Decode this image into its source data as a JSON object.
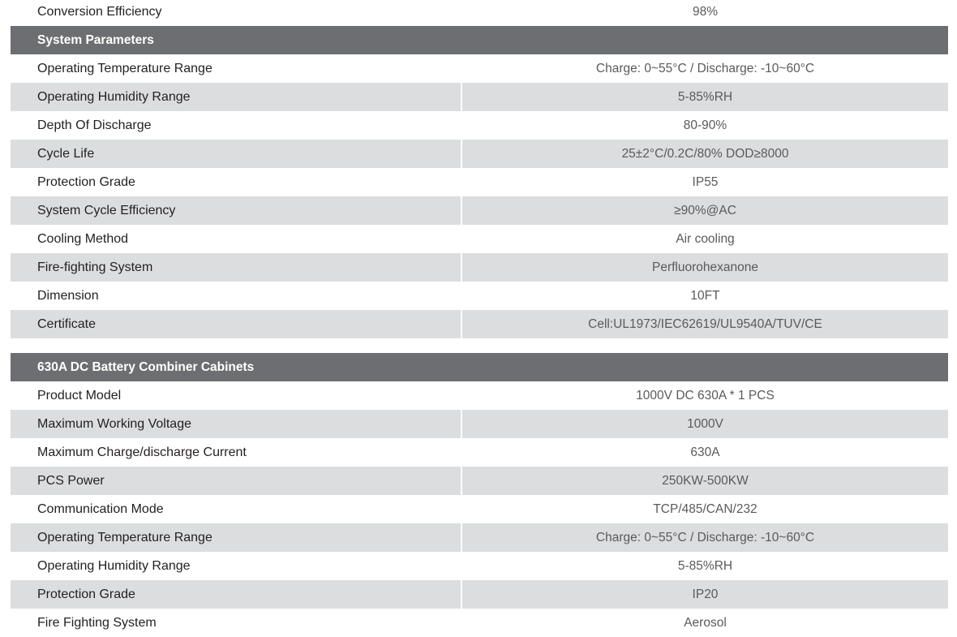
{
  "top_row": {
    "label": "Conversion Efficiency",
    "value": "98%"
  },
  "sections": [
    {
      "title": "System Parameters",
      "rows": [
        {
          "label": "Operating Temperature Range",
          "value": "Charge: 0~55°C / Discharge: -10~60°C"
        },
        {
          "label": "Operating Humidity Range",
          "value": "5-85%RH"
        },
        {
          "label": "Depth Of Discharge",
          "value": "80-90%"
        },
        {
          "label": "Cycle Life",
          "value": "25±2°C/0.2C/80% DOD≥8000"
        },
        {
          "label": "Protection Grade",
          "value": "IP55"
        },
        {
          "label": "System Cycle Efficiency",
          "value": "≥90%@AC"
        },
        {
          "label": "Cooling Method",
          "value": "Air cooling"
        },
        {
          "label": "Fire-fighting System",
          "value": "Perfluorohexanone"
        },
        {
          "label": "Dimension",
          "value": "10FT"
        },
        {
          "label": "Certificate",
          "value": "Cell:UL1973/IEC62619/UL9540A/TUV/CE"
        }
      ]
    },
    {
      "title": "630A DC Battery Combiner Cabinets",
      "rows": [
        {
          "label": "Product Model",
          "value": "1000V DC 630A * 1 PCS"
        },
        {
          "label": "Maximum Working Voltage",
          "value": "1000V"
        },
        {
          "label": "Maximum Charge/discharge Current",
          "value": "630A"
        },
        {
          "label": "PCS Power",
          "value": "250KW-500KW"
        },
        {
          "label": "Communication Mode",
          "value": "TCP/485/CAN/232"
        },
        {
          "label": "Operating Temperature Range",
          "value": "Charge: 0~55°C / Discharge: -10~60°C"
        },
        {
          "label": "Operating Humidity Range",
          "value": "5-85%RH"
        },
        {
          "label": "Protection Grade",
          "value": "IP20"
        },
        {
          "label": "Fire Fighting System",
          "value": "Aerosol"
        }
      ]
    }
  ],
  "colors": {
    "header_bg": "#6d6e71",
    "alt_row_bg": "#dcdddf"
  }
}
